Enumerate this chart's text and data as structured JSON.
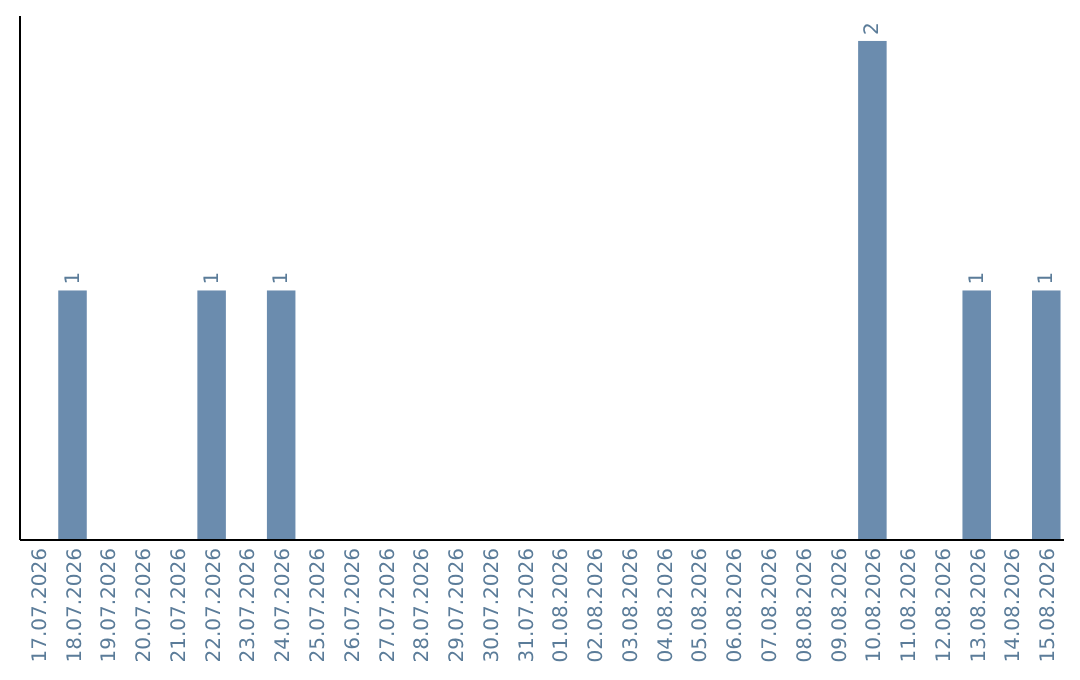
{
  "chart_data": {
    "type": "bar",
    "categories": [
      "17.07.2026",
      "18.07.2026",
      "19.07.2026",
      "20.07.2026",
      "21.07.2026",
      "22.07.2026",
      "23.07.2026",
      "24.07.2026",
      "25.07.2026",
      "26.07.2026",
      "27.07.2026",
      "28.07.2026",
      "29.07.2026",
      "30.07.2026",
      "31.07.2026",
      "01.08.2026",
      "02.08.2026",
      "03.08.2026",
      "04.08.2026",
      "05.08.2026",
      "06.08.2026",
      "07.08.2026",
      "08.08.2026",
      "09.08.2026",
      "10.08.2026",
      "11.08.2026",
      "12.08.2026",
      "13.08.2026",
      "14.08.2026",
      "15.08.2026"
    ],
    "values": [
      0,
      1,
      0,
      0,
      0,
      1,
      0,
      1,
      0,
      0,
      0,
      0,
      0,
      0,
      0,
      0,
      0,
      0,
      0,
      0,
      0,
      0,
      0,
      0,
      2,
      0,
      0,
      1,
      0,
      1
    ],
    "value_labels": [
      null,
      "1",
      null,
      null,
      null,
      "1",
      null,
      "1",
      null,
      null,
      null,
      null,
      null,
      null,
      null,
      null,
      null,
      null,
      null,
      null,
      null,
      null,
      null,
      null,
      "2",
      null,
      null,
      "1",
      null,
      "1"
    ],
    "color": "#6b8cae",
    "tick_labels": "x"
  }
}
